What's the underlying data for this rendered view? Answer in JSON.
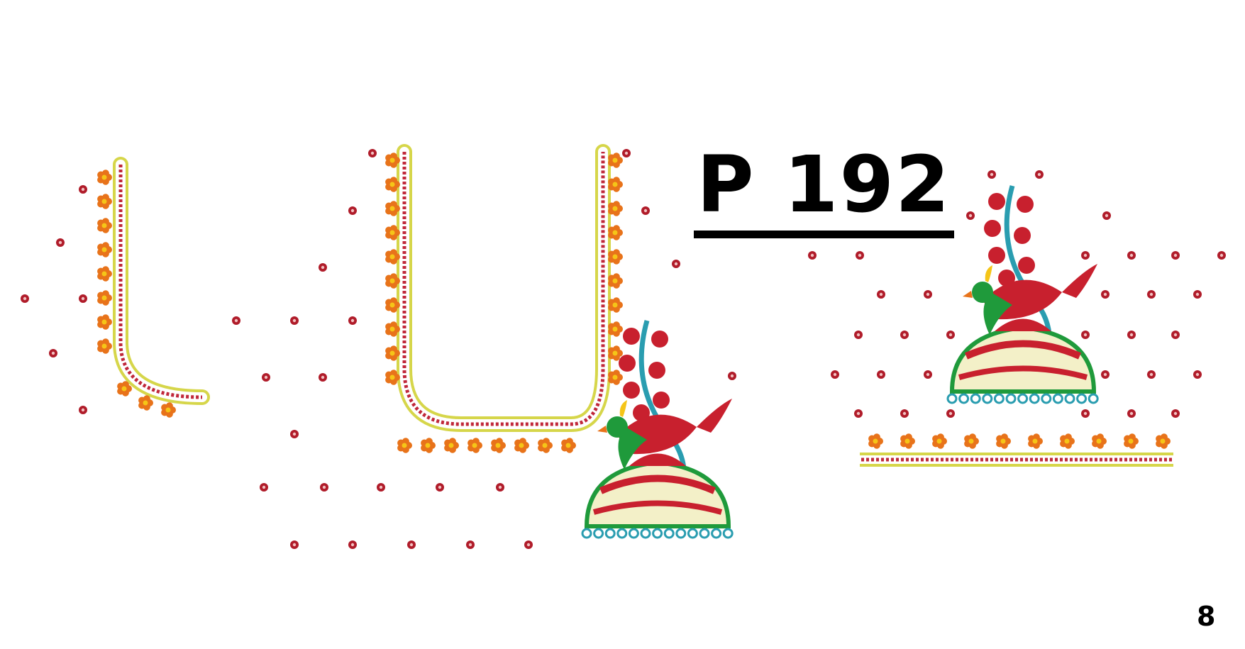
{
  "design": {
    "code": "P 192",
    "page_number": "8"
  },
  "colors": {
    "maroon_dot": "#b01c2a",
    "flower_petal": "#e8731a",
    "flower_center": "#f5c518",
    "piping_yellow": "#d6d64a",
    "piping_red": "#c0283a",
    "bird_green": "#1f9a3b",
    "bird_red": "#c8202e",
    "jhumka_teal": "#2a9db0",
    "jhumka_cream": "#f3f0c8"
  },
  "motifs": {
    "left_panel": "sleeve-neckline-border",
    "center_panel": "front-neckline-with-parrot-jhumka",
    "right_panel": "sleeve-border-with-parrot-jhumka"
  }
}
